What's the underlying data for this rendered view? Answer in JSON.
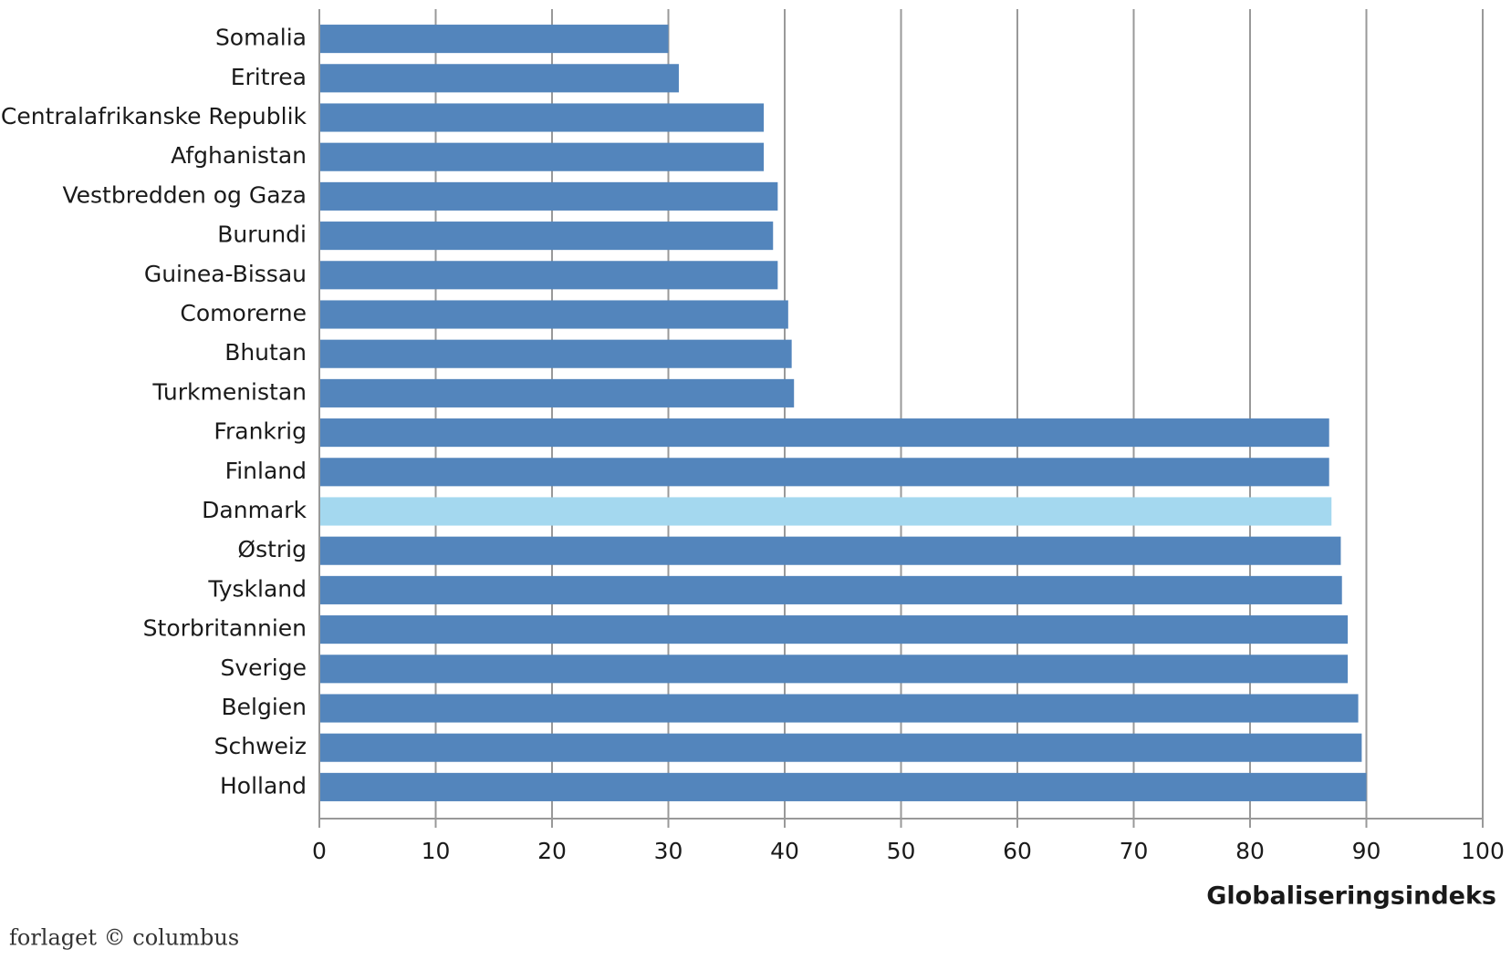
{
  "chart_data": {
    "type": "barh",
    "x_label": "Globaliseringsindeks",
    "categories": [
      "Somalia",
      "Eritrea",
      "Centralafrikanske Republik",
      "Afghanistan",
      "Vestbredden og Gaza",
      "Burundi",
      "Guinea-Bissau",
      "Comorerne",
      "Bhutan",
      "Turkmenistan",
      "Frankrig",
      "Finland",
      "Danmark",
      "Østrig",
      "Tyskland",
      "Storbritannien",
      "Sverige",
      "Belgien",
      "Schweiz",
      "Holland"
    ],
    "values": [
      30.0,
      30.9,
      38.2,
      38.2,
      39.4,
      39.0,
      39.4,
      40.3,
      40.6,
      40.8,
      86.8,
      86.8,
      87.0,
      87.8,
      87.9,
      88.4,
      88.4,
      89.3,
      89.6,
      90.0
    ],
    "colors": [
      "#5385bc",
      "#5385bc",
      "#5385bc",
      "#5385bc",
      "#5385bc",
      "#5385bc",
      "#5385bc",
      "#5385bc",
      "#5385bc",
      "#5385bc",
      "#5385bc",
      "#5385bc",
      "#a4d8ef",
      "#5385bc",
      "#5385bc",
      "#5385bc",
      "#5385bc",
      "#5385bc",
      "#5385bc",
      "#5385bc"
    ],
    "xlim": [
      0,
      100
    ],
    "xticks": [
      0,
      10,
      20,
      30,
      40,
      50,
      60,
      70,
      80,
      90,
      100
    ],
    "grid": true
  },
  "footer": "forlaget © columbus"
}
